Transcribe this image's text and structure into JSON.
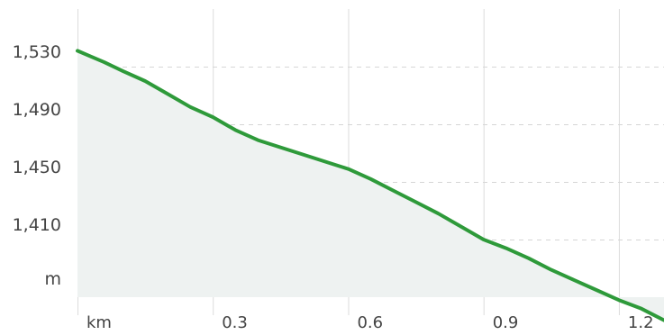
{
  "chart_data": {
    "type": "area",
    "title": "",
    "xlabel": "km",
    "ylabel": "m",
    "xlim": [
      0,
      1.3
    ],
    "ylim": [
      1370,
      1570
    ],
    "x_ticks": [
      "0.3",
      "0.6",
      "0.9",
      "1.2"
    ],
    "y_ticks": [
      "1,530",
      "1,490",
      "1,450",
      "1,410"
    ],
    "grid": true,
    "line_color": "#2e9a3a",
    "fill_color": "#eef2f1",
    "series": [
      {
        "x": [
          0.0,
          0.03,
          0.06,
          0.1,
          0.15,
          0.2,
          0.25,
          0.3,
          0.35,
          0.4,
          0.45,
          0.5,
          0.55,
          0.6,
          0.65,
          0.7,
          0.75,
          0.8,
          0.85,
          0.9,
          0.95,
          1.0,
          1.05,
          1.1,
          1.15,
          1.2,
          1.25,
          1.3
        ],
        "values": [
          1541,
          1537,
          1533,
          1527,
          1520,
          1511,
          1502,
          1495,
          1486,
          1479,
          1474,
          1469,
          1464,
          1459,
          1452,
          1444,
          1436,
          1428,
          1419,
          1410,
          1404,
          1397,
          1389,
          1382,
          1375,
          1368,
          1362,
          1354
        ]
      }
    ]
  }
}
